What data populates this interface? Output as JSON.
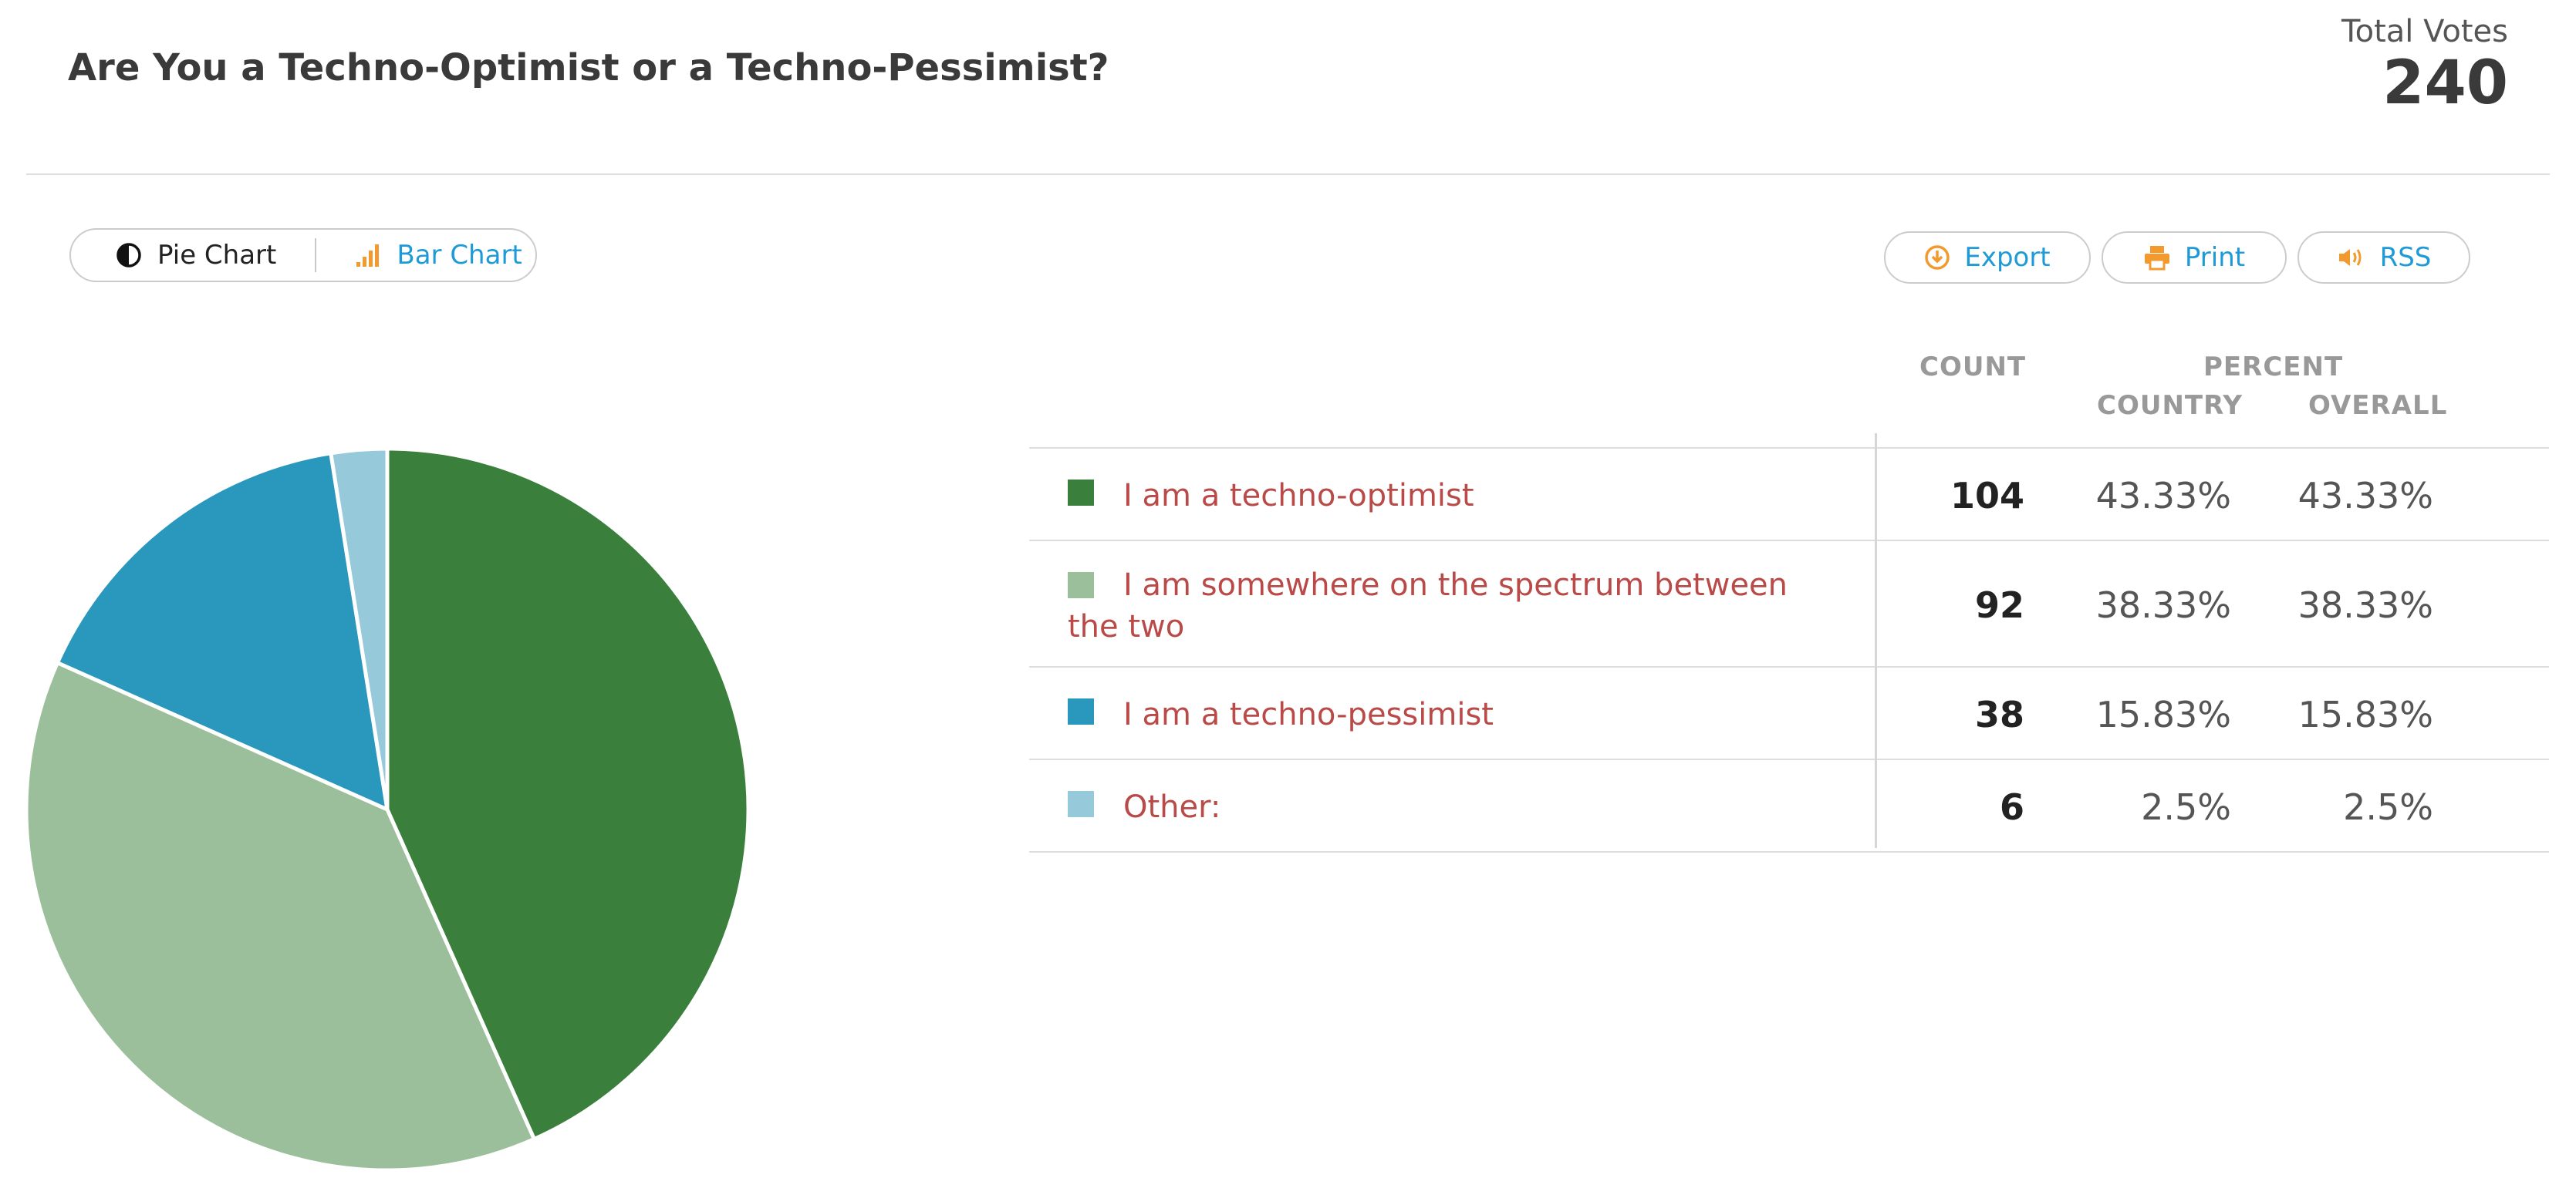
{
  "poll": {
    "title": "Are You a Techno-Optimist or a Techno-Pessimist?",
    "total_votes_label": "Total Votes",
    "total_votes": "240"
  },
  "toolbar": {
    "pie_label": "Pie Chart",
    "bar_label": "Bar Chart",
    "export_label": "Export",
    "print_label": "Print",
    "rss_label": "RSS"
  },
  "table": {
    "headers": {
      "count": "COUNT",
      "percent": "PERCENT",
      "country": "COUNTRY",
      "overall": "OVERALL"
    },
    "rows": [
      {
        "label": "I am a techno-optimist",
        "count": "104",
        "country": "43.33%",
        "overall": "43.33%",
        "color": "#3a7f3b"
      },
      {
        "label": "I am somewhere on the spectrum between the two",
        "count": "92",
        "country": "38.33%",
        "overall": "38.33%",
        "color": "#9bbf9b"
      },
      {
        "label": "I am a techno-pessimist",
        "count": "38",
        "country": "15.83%",
        "overall": "15.83%",
        "color": "#2a97bd"
      },
      {
        "label": "Other:",
        "count": "6",
        "country": "2.5%",
        "overall": "2.5%",
        "color": "#96cadb"
      }
    ]
  },
  "colors": {
    "accent": "#1e9bd7",
    "icon_orange": "#f29a2e",
    "label_red": "#b94a48"
  },
  "chart_data": {
    "type": "pie",
    "categories": [
      "I am a techno-optimist",
      "I am somewhere on the spectrum between the two",
      "I am a techno-pessimist",
      "Other:"
    ],
    "values": [
      104,
      92,
      38,
      6
    ],
    "colors": [
      "#3a7f3b",
      "#9bbf9b",
      "#2a97bd",
      "#96cadb"
    ],
    "start": "top",
    "direction": "clockwise"
  }
}
